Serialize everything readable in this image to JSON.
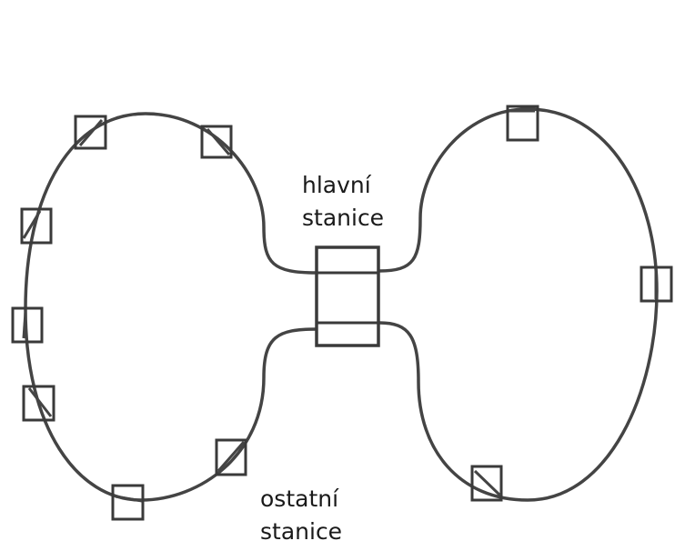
{
  "labels": {
    "main_station_line1": "hlavní",
    "main_station_line2": "stanice",
    "other_stations_line1": "ostatní",
    "other_stations_line2": "stanice"
  },
  "colors": {
    "line": "#444444",
    "box": "#3a3a3a",
    "background": "#ffffff"
  }
}
